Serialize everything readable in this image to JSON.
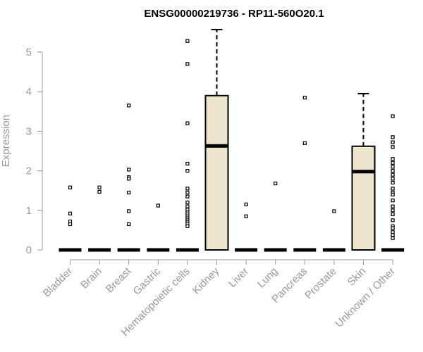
{
  "chart_data": {
    "type": "box",
    "title": "ENSG00000219736 - RP11-560O20.1",
    "xlabel": "",
    "ylabel": "Expression",
    "ylim": [
      0,
      5.6
    ],
    "yticks": [
      0,
      1,
      2,
      3,
      4,
      5
    ],
    "box_fill": "#ede5cc",
    "box_stroke": "#000000",
    "axis_color": "#999999",
    "categories": [
      {
        "name": "Bladder",
        "box": {
          "q1": 0,
          "median": 0,
          "q3": 0,
          "whisker_low": 0,
          "whisker_high": 0
        },
        "outliers": [
          1.58,
          0.92,
          0.72,
          0.65
        ]
      },
      {
        "name": "Brain",
        "box": {
          "q1": 0,
          "median": 0,
          "q3": 0,
          "whisker_low": 0,
          "whisker_high": 0
        },
        "outliers": [
          1.58,
          1.47
        ]
      },
      {
        "name": "Breast",
        "box": {
          "q1": 0,
          "median": 0,
          "q3": 0,
          "whisker_low": 0,
          "whisker_high": 0
        },
        "outliers": [
          3.65,
          2.03,
          1.84,
          1.8,
          1.45,
          0.98,
          0.65
        ]
      },
      {
        "name": "Gastric",
        "box": {
          "q1": 0,
          "median": 0,
          "q3": 0,
          "whisker_low": 0,
          "whisker_high": 0
        },
        "outliers": [
          1.12
        ]
      },
      {
        "name": "Hematopoietic cells",
        "box": {
          "q1": 0,
          "median": 0,
          "q3": 0,
          "whisker_low": 0,
          "whisker_high": 0
        },
        "outliers": [
          5.28,
          4.7,
          3.2,
          2.18,
          2.0,
          1.55,
          1.45,
          1.35,
          1.2,
          1.1,
          1.02,
          0.95,
          0.9,
          0.85,
          0.8,
          0.75,
          0.7,
          0.65,
          0.6
        ]
      },
      {
        "name": "Kidney",
        "box": {
          "q1": 0,
          "median": 2.63,
          "q3": 3.9,
          "whisker_low": 0,
          "whisker_high": 5.57
        },
        "outliers": []
      },
      {
        "name": "Liver",
        "box": {
          "q1": 0,
          "median": 0,
          "q3": 0,
          "whisker_low": 0,
          "whisker_high": 0
        },
        "outliers": [
          1.15,
          0.85
        ]
      },
      {
        "name": "Lung",
        "box": {
          "q1": 0,
          "median": 0,
          "q3": 0,
          "whisker_low": 0,
          "whisker_high": 0
        },
        "outliers": [
          1.68
        ]
      },
      {
        "name": "Pancreas",
        "box": {
          "q1": 0,
          "median": 0,
          "q3": 0,
          "whisker_low": 0,
          "whisker_high": 0
        },
        "outliers": [
          3.85,
          2.7
        ]
      },
      {
        "name": "Prostate",
        "box": {
          "q1": 0,
          "median": 0,
          "q3": 0,
          "whisker_low": 0,
          "whisker_high": 0
        },
        "outliers": [
          0.98
        ]
      },
      {
        "name": "Skin",
        "box": {
          "q1": 0,
          "median": 1.98,
          "q3": 2.62,
          "whisker_low": 0,
          "whisker_high": 3.95
        },
        "outliers": []
      },
      {
        "name": "Unknown / Other",
        "box": {
          "q1": 0,
          "median": 0,
          "q3": 0,
          "whisker_low": 0,
          "whisker_high": 0
        },
        "outliers": [
          3.38,
          2.85,
          2.72,
          2.6,
          2.3,
          2.2,
          2.1,
          2.0,
          1.9,
          1.8,
          1.7,
          1.55,
          1.45,
          1.4,
          1.25,
          1.1,
          1.0,
          0.9,
          0.75,
          0.6,
          0.55,
          0.45,
          0.38,
          0.3
        ]
      }
    ]
  }
}
